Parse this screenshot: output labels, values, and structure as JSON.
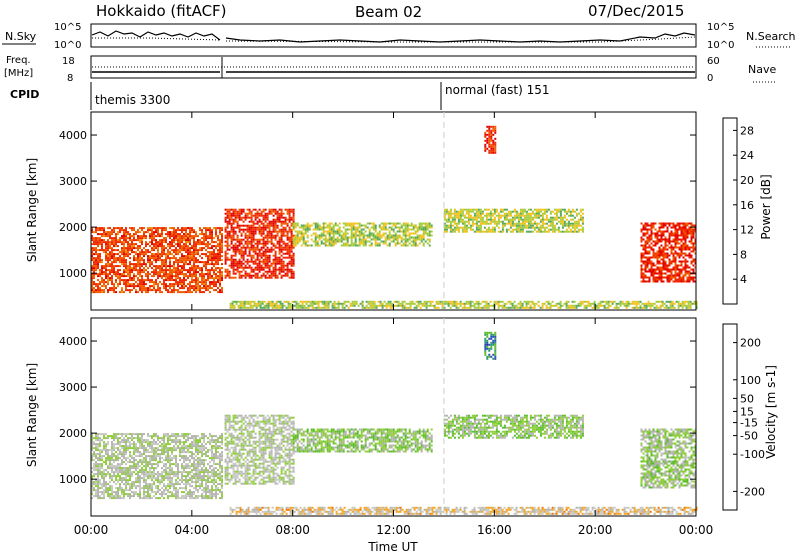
{
  "header": {
    "title": "Hokkaido (fitACF)",
    "beam": "Beam 02",
    "date": "07/Dec/2015"
  },
  "noise_panel": {
    "left_label": "N.Sky",
    "right_label": "N.Search",
    "left_ticks": [
      "10^5",
      "10^0"
    ],
    "right_ticks": [
      "10^5",
      "10^0"
    ]
  },
  "freq_panel": {
    "left_label_1": "Freq.",
    "left_label_2": "[MHz]",
    "left_ticks": [
      "18",
      "8"
    ],
    "right_label": "Nave",
    "right_ticks": [
      "60",
      "0"
    ]
  },
  "cpid_panel": {
    "label": "CPID",
    "modes": [
      "themis 3300",
      "normal (fast) 151"
    ]
  },
  "time_axis": {
    "label": "Time UT",
    "ticks": [
      "00:00",
      "04:00",
      "08:00",
      "12:00",
      "16:00",
      "20:00",
      "00:00"
    ]
  },
  "colors": {
    "power": [
      "#0000ff",
      "#1f45b8",
      "#3b8a6e",
      "#57a85a",
      "#a5cc3c",
      "#f2c21e",
      "#f28c0c",
      "#f25a00",
      "#f02800",
      "#e00000"
    ],
    "velocity": [
      "#e00000",
      "#f23c00",
      "#f27800",
      "#f2a62a",
      "#c8c8c4",
      "#b4b4b0",
      "#8fcf3a",
      "#5bbd2c",
      "#2f9a6e",
      "#2a4fb8",
      "#1a2ea8"
    ]
  },
  "chart_data": [
    {
      "type": "heatmap",
      "title": "",
      "xlabel": "Time UT",
      "ylabel": "Slant Range [km]",
      "x_ticks": [
        "00:00",
        "04:00",
        "08:00",
        "12:00",
        "16:00",
        "20:00",
        "00:00"
      ],
      "y_ticks": [
        1000,
        2000,
        3000,
        4000
      ],
      "xlim_hours": [
        0,
        24
      ],
      "ylim": [
        200,
        4500
      ],
      "colorbar": {
        "label": "Power [dB]",
        "ticks": [
          4,
          8,
          12,
          16,
          20,
          24,
          28
        ],
        "range": [
          0,
          30
        ]
      },
      "echo_regions": [
        {
          "t_start_h": 0.0,
          "t_end_h": 5.2,
          "range_lo_km": 600,
          "range_hi_km": 2000,
          "value": 24
        },
        {
          "t_start_h": 5.3,
          "t_end_h": 8.0,
          "range_lo_km": 900,
          "range_hi_km": 2400,
          "value": 26
        },
        {
          "t_start_h": 8.0,
          "t_end_h": 13.5,
          "range_lo_km": 1600,
          "range_hi_km": 2100,
          "value": 14
        },
        {
          "t_start_h": 14.0,
          "t_end_h": 19.5,
          "range_lo_km": 1900,
          "range_hi_km": 2400,
          "value": 14
        },
        {
          "t_start_h": 15.6,
          "t_end_h": 16.0,
          "range_lo_km": 3600,
          "range_hi_km": 4200,
          "value": 26
        },
        {
          "t_start_h": 21.8,
          "t_end_h": 24.0,
          "range_lo_km": 800,
          "range_hi_km": 2100,
          "value": 26
        },
        {
          "t_start_h": 5.5,
          "t_end_h": 24.0,
          "range_lo_km": 250,
          "range_hi_km": 400,
          "value": 14
        }
      ]
    },
    {
      "type": "heatmap",
      "title": "",
      "xlabel": "Time UT",
      "ylabel": "Slant Range [km]",
      "x_ticks": [
        "00:00",
        "04:00",
        "08:00",
        "12:00",
        "16:00",
        "20:00",
        "00:00"
      ],
      "y_ticks": [
        1000,
        2000,
        3000,
        4000
      ],
      "xlim_hours": [
        0,
        24
      ],
      "ylim": [
        200,
        4500
      ],
      "colorbar": {
        "label": "Velocity [m s-1]",
        "ticks": [
          -200,
          -100,
          -50,
          -15,
          15,
          50,
          100,
          200
        ],
        "range": [
          -250,
          250
        ]
      },
      "echo_regions": [
        {
          "t_start_h": 0.0,
          "t_end_h": 5.2,
          "range_lo_km": 600,
          "range_hi_km": 2000,
          "value": 0
        },
        {
          "t_start_h": 5.3,
          "t_end_h": 8.0,
          "range_lo_km": 900,
          "range_hi_km": 2400,
          "value": 0
        },
        {
          "t_start_h": 8.0,
          "t_end_h": 13.5,
          "range_lo_km": 1600,
          "range_hi_km": 2100,
          "value": 40
        },
        {
          "t_start_h": 14.0,
          "t_end_h": 19.5,
          "range_lo_km": 1900,
          "range_hi_km": 2400,
          "value": 40
        },
        {
          "t_start_h": 15.6,
          "t_end_h": 16.0,
          "range_lo_km": 3600,
          "range_hi_km": 4200,
          "value": 150
        },
        {
          "t_start_h": 21.8,
          "t_end_h": 24.0,
          "range_lo_km": 800,
          "range_hi_km": 2100,
          "value": 30
        },
        {
          "t_start_h": 5.5,
          "t_end_h": 24.0,
          "range_lo_km": 250,
          "range_hi_km": 400,
          "value": -60
        }
      ]
    }
  ]
}
